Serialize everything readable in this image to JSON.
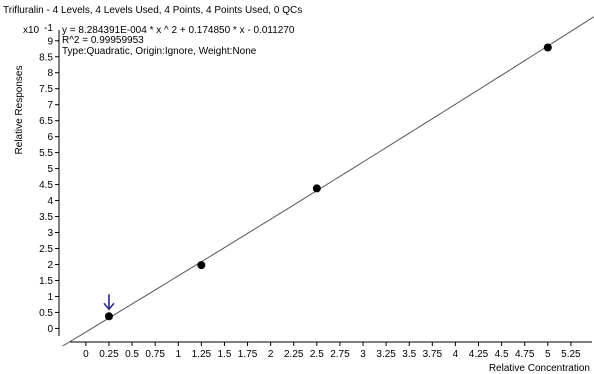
{
  "chart_data": {
    "type": "scatter",
    "title": "Trifluralin - 4 Levels, 4 Levels Used, 4 Points, 4 Points Used, 0 QCs",
    "equation": "y = 8.284391E-004 * x ^ 2  + 0.174850 * x  - 0.011270",
    "r_squared": "R^2 = 0.99959953",
    "fit_info": "Type:Quadratic, Origin:Ignore, Weight:None",
    "y_multiplier": "x10",
    "y_exponent": "-1",
    "xlabel": "Relative Concentration",
    "ylabel": "Relative Responses",
    "xlim": [
      -0.28,
      5.5
    ],
    "ylim": [
      -0.3,
      9.4
    ],
    "x_ticks": [
      "0",
      "0.25",
      "0.5",
      "0.75",
      "1",
      "1.25",
      "1.5",
      "1.75",
      "2",
      "2.25",
      "2.5",
      "2.75",
      "3",
      "3.25",
      "3.5",
      "3.75",
      "4",
      "4.25",
      "4.5",
      "4.75",
      "5",
      "5.25"
    ],
    "y_ticks": [
      "0",
      "0.5",
      "1",
      "1.5",
      "2",
      "2.5",
      "3",
      "3.5",
      "4",
      "4.5",
      "5",
      "5.5",
      "6",
      "6.5",
      "7",
      "7.5",
      "8",
      "8.5",
      "9"
    ],
    "points": [
      {
        "x": 0.25,
        "y": 0.38
      },
      {
        "x": 1.25,
        "y": 1.98
      },
      {
        "x": 2.5,
        "y": 4.38
      },
      {
        "x": 5.0,
        "y": 8.79
      }
    ],
    "fit": {
      "a": 0.0008284391,
      "b": 0.17485,
      "c": -0.01127,
      "scale": 10,
      "x_from": -0.25,
      "x_to": 5.5
    },
    "marker_point_index": 0,
    "colors": {
      "line": "#555555",
      "point": "#000000",
      "arrow": "#2a2a9a",
      "axis": "#000000"
    }
  }
}
